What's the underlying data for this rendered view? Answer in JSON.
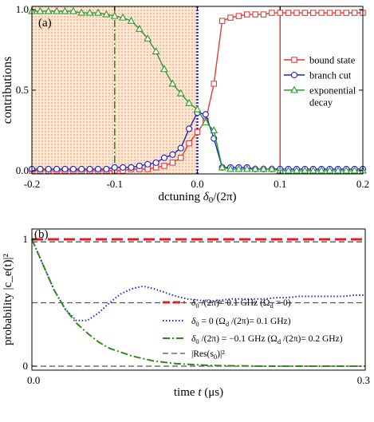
{
  "chart_data": [
    {
      "panel_label": "(a)",
      "type": "line",
      "xlabel_prefix": "dctuning ",
      "xlabel_math": "δ",
      "xlabel_sub": "0",
      "xlabel_suffix": "/(2π)",
      "ylabel": "contributions",
      "xlim": [
        -0.2,
        0.2
      ],
      "ylim": [
        -0.02,
        1.02
      ],
      "xticks": [
        -0.2,
        -0.1,
        0.0,
        0.1,
        0.2
      ],
      "xtick_labels": [
        "-0.2",
        "-0.1",
        "0.0",
        "0.1",
        "0.2"
      ],
      "yticks": [
        0.0,
        0.5,
        1.0
      ],
      "ytick_labels": [
        "0.0",
        "0.5",
        "1.0"
      ],
      "shaded_region_x": [
        -0.2,
        0.0
      ],
      "shaded_color": "#f6c9a4",
      "vlines": [
        {
          "x": -0.1,
          "color": "#2e8b1c",
          "style": "dashdot"
        },
        {
          "x": 0.0,
          "color": "#1f22c8",
          "style": "dotted"
        },
        {
          "x": 0.1,
          "color": "#e23b3b",
          "style": "solid"
        }
      ],
      "x": [
        -0.2,
        -0.19,
        -0.18,
        -0.17,
        -0.16,
        -0.15,
        -0.14,
        -0.13,
        -0.12,
        -0.11,
        -0.1,
        -0.09,
        -0.08,
        -0.07,
        -0.06,
        -0.05,
        -0.04,
        -0.03,
        -0.02,
        -0.01,
        0.0,
        0.01,
        0.02,
        0.03,
        0.04,
        0.05,
        0.06,
        0.07,
        0.08,
        0.09,
        0.1,
        0.11,
        0.12,
        0.13,
        0.14,
        0.15,
        0.16,
        0.17,
        0.18,
        0.19,
        0.2
      ],
      "series": [
        {
          "name": "bound state",
          "color": "#e23b3b",
          "marker": "square",
          "values": [
            0.0,
            0.0,
            0.0,
            0.0,
            0.0,
            0.0,
            0.0,
            0.0,
            0.0,
            0.0,
            0.0,
            0.0,
            0.01,
            0.01,
            0.01,
            0.02,
            0.03,
            0.05,
            0.08,
            0.17,
            0.24,
            0.31,
            0.54,
            0.93,
            0.95,
            0.96,
            0.97,
            0.97,
            0.97,
            0.98,
            0.98,
            0.98,
            0.98,
            0.98,
            0.98,
            0.98,
            0.98,
            0.98,
            0.98,
            0.98,
            0.98
          ]
        },
        {
          "name": "branch cut",
          "color": "#1f22c8",
          "marker": "circle",
          "values": [
            0.01,
            0.01,
            0.01,
            0.01,
            0.01,
            0.01,
            0.01,
            0.01,
            0.01,
            0.01,
            0.02,
            0.02,
            0.02,
            0.03,
            0.04,
            0.05,
            0.08,
            0.1,
            0.14,
            0.26,
            0.36,
            0.35,
            0.2,
            0.02,
            0.02,
            0.02,
            0.02,
            0.01,
            0.01,
            0.01,
            0.01,
            0.01,
            0.01,
            0.01,
            0.01,
            0.01,
            0.01,
            0.01,
            0.01,
            0.01,
            0.01
          ]
        },
        {
          "name": "exponential decay",
          "color": "#2e9a2e",
          "marker": "triangle",
          "values": [
            0.99,
            0.99,
            0.99,
            0.99,
            0.99,
            0.99,
            0.98,
            0.98,
            0.98,
            0.97,
            0.96,
            0.95,
            0.93,
            0.88,
            0.82,
            0.74,
            0.63,
            0.54,
            0.48,
            0.42,
            0.38,
            0.3,
            0.25,
            0.02,
            0.01,
            0.01,
            0.01,
            0.01,
            0.01,
            0.01,
            0.0,
            0.0,
            0.0,
            0.0,
            0.0,
            0.0,
            0.0,
            0.0,
            0.0,
            0.0,
            0.0
          ]
        }
      ],
      "legend": {
        "placement": "right",
        "entries": [
          "bound state",
          "branch cut",
          "exponential",
          "decay"
        ]
      }
    },
    {
      "panel_label": "(b)",
      "type": "line",
      "xlabel_prefix": "time ",
      "xlabel_math": "t",
      "xlabel_suffix": " (μs)",
      "ylabel": "probability |c_e(t)|²",
      "xlim": [
        0.0,
        0.3
      ],
      "ylim": [
        0.0,
        1.0
      ],
      "xticks": [
        0.0,
        0.3
      ],
      "xtick_labels": [
        "0.0",
        "0.3"
      ],
      "yticks": [
        0,
        1
      ],
      "ytick_labels": [
        "0",
        "1"
      ],
      "hlines": [
        {
          "y": 0.98,
          "color": "#555555",
          "style": "dashed"
        },
        {
          "y": 0.5,
          "color": "#555555",
          "style": "dashed"
        },
        {
          "y": 0.0,
          "color": "#555555",
          "style": "dashed"
        }
      ],
      "x": [
        0.0,
        0.01,
        0.02,
        0.03,
        0.04,
        0.05,
        0.06,
        0.07,
        0.08,
        0.09,
        0.1,
        0.11,
        0.12,
        0.13,
        0.14,
        0.15,
        0.16,
        0.17,
        0.18,
        0.19,
        0.2,
        0.21,
        0.22,
        0.23,
        0.24,
        0.25,
        0.26,
        0.27,
        0.28,
        0.29,
        0.3
      ],
      "series": [
        {
          "name": "δ0/(2π)= 0.1 GHz (Ωd = 0)",
          "color": "#e02020",
          "style": "dashed",
          "values": [
            1.0,
            1.0,
            1.0,
            1.0,
            1.0,
            1.0,
            1.0,
            1.0,
            1.0,
            1.0,
            1.0,
            1.0,
            1.0,
            1.0,
            1.0,
            1.0,
            1.0,
            1.0,
            1.0,
            1.0,
            1.0,
            1.0,
            1.0,
            1.0,
            1.0,
            1.0,
            1.0,
            1.0,
            1.0,
            1.0,
            1.0
          ]
        },
        {
          "name": "δ0 = 0 (Ωd/(2π)= 0.1 GHz)",
          "color": "#1f2bd8",
          "style": "dotted",
          "values": [
            1.0,
            0.8,
            0.6,
            0.45,
            0.36,
            0.36,
            0.42,
            0.5,
            0.57,
            0.61,
            0.63,
            0.61,
            0.58,
            0.55,
            0.53,
            0.52,
            0.51,
            0.52,
            0.53,
            0.53,
            0.53,
            0.53,
            0.54,
            0.54,
            0.55,
            0.55,
            0.55,
            0.55,
            0.55,
            0.56,
            0.56
          ]
        },
        {
          "name": "δ0/(2π)= −0.1 GHz (Ωd/(2π)= 0.2 GHz)",
          "color": "#2e8b1c",
          "style": "dashdot",
          "values": [
            1.0,
            0.8,
            0.6,
            0.45,
            0.34,
            0.26,
            0.19,
            0.14,
            0.11,
            0.08,
            0.06,
            0.04,
            0.03,
            0.02,
            0.015,
            0.01,
            0.006,
            0.004,
            0.003,
            0.002,
            0.001,
            0.0,
            0.0,
            0.0,
            0.0,
            0.0,
            0.0,
            0.0,
            0.0,
            0.0,
            0.0
          ]
        }
      ],
      "legend": {
        "placement": "lower-right",
        "entries": [
          {
            "math": "δ",
            "sub": "0",
            "text": " /(2π)=  0.1 GHz  (Ω",
            "sub2": "d",
            "text2": " = 0)"
          },
          {
            "math": "δ",
            "sub": "0",
            "text": " = 0      (Ω",
            "sub2": "d",
            "text2": " /(2π)= 0.1 GHz)"
          },
          {
            "math": "δ",
            "sub": "0",
            "text": " /(2π) = −0.1 GHz   (Ω",
            "sub2": "d",
            "text2": " /(2π)= 0.2 GHz)"
          },
          {
            "math": "",
            "sub": "",
            "text": "|Res(s",
            "sub2": "0",
            "text2": ")|²"
          }
        ]
      }
    }
  ]
}
